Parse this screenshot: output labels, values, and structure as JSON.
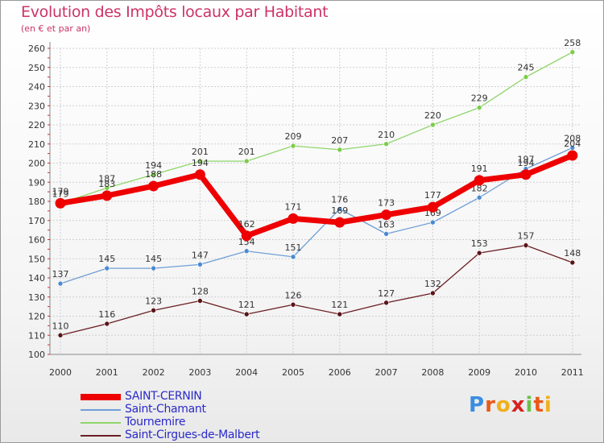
{
  "chart_data": {
    "type": "line",
    "title": "Evolution des Impôts locaux par Habitant",
    "subtitle": "(en € et par an)",
    "x": [
      "2000",
      "2001",
      "2002",
      "2003",
      "2004",
      "2005",
      "2006",
      "2007",
      "2008",
      "2009",
      "2010",
      "2011"
    ],
    "ylim": [
      100,
      260
    ],
    "yticks": [
      100,
      110,
      120,
      130,
      140,
      150,
      160,
      170,
      180,
      190,
      200,
      210,
      220,
      230,
      240,
      250,
      260
    ],
    "grid": true,
    "legend_position": "bottom-left",
    "series": [
      {
        "name": "Saint-Cirgues-de-Malbert",
        "color": "#6b1f24",
        "values": [
          110,
          116,
          123,
          128,
          121,
          126,
          121,
          127,
          132,
          153,
          157,
          148
        ]
      },
      {
        "name": "Tournemire",
        "color": "#8fd66b",
        "values": [
          179,
          187,
          194,
          201,
          201,
          209,
          207,
          210,
          220,
          229,
          245,
          258
        ]
      },
      {
        "name": "Saint-Chamant",
        "color": "#6f9fd6",
        "values": [
          137,
          145,
          145,
          147,
          154,
          151,
          176,
          163,
          169,
          182,
          197,
          208
        ]
      },
      {
        "name": "SAINT-CERNIN",
        "color": "#ee0000",
        "values": [
          179,
          183,
          188,
          194,
          162,
          171,
          169,
          173,
          177,
          191,
          194,
          204
        ]
      }
    ]
  },
  "legend": {
    "items": [
      {
        "label": "SAINT-CERNIN",
        "color": "#ee0000"
      },
      {
        "label": "Saint-Chamant",
        "color": "#6f9fd6"
      },
      {
        "label": "Tournemire",
        "color": "#8fd66b"
      },
      {
        "label": "Saint-Cirgues-de-Malbert",
        "color": "#6b1f24"
      }
    ]
  },
  "logo": {
    "letters": [
      "P",
      "r",
      "o",
      "x",
      "i",
      "t",
      "i"
    ],
    "colors": [
      "#3a8ee0",
      "#e85a1a",
      "#f0b01c",
      "#d92020",
      "#6cc04a",
      "#e85a1a",
      "#f0b01c"
    ]
  }
}
